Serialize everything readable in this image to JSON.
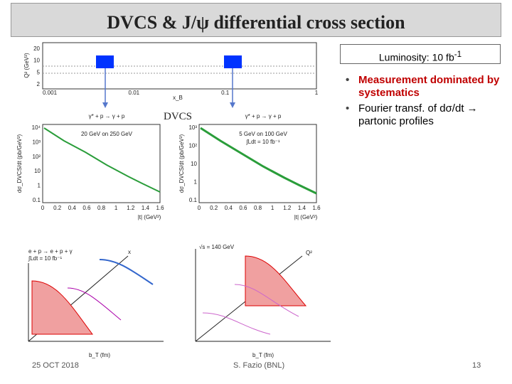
{
  "header": {
    "title": "DVCS & J/ψ differential cross section"
  },
  "luminosity": {
    "text": "Luminosity: 10 fb",
    "sup": "-1"
  },
  "bullets": [
    "Measurement dominated by systematics",
    "Fourier transf. of dσ/dt → partonic profiles"
  ],
  "dvcs_label": "DVCS",
  "kinematic_plot": {
    "y_label": "Q² (GeV²)",
    "y_ticks": [
      "20",
      "10",
      "5",
      "2"
    ],
    "x_label": "x_B",
    "x_ticks": [
      "0.001",
      "0.01",
      "0.1",
      "1"
    ]
  },
  "cross_section_plots": [
    {
      "process": "γ* + p → γ + p",
      "beams": "20 GeV on 250 GeV",
      "luminosity": "∫Ldt = 10 fb⁻¹",
      "y_label": "dσ_DVCS/dt (pb/GeV²)",
      "y_ticks": [
        "10⁴",
        "10³",
        "10²",
        "10",
        "1",
        "0.1"
      ],
      "x_label": "|t| (GeV²)",
      "x_ticks": [
        "0",
        "0.2",
        "0.4",
        "0.6",
        "0.8",
        "1",
        "1.2",
        "1.4",
        "1.6"
      ]
    },
    {
      "process": "γ* + p → γ + p",
      "beams": "5 GeV on 100 GeV",
      "luminosity": "∫Ldt = 10 fb⁻¹",
      "y_label": "dσ_DVCS/dt (pb/GeV²)",
      "y_ticks": [
        "10³",
        "10²",
        "10",
        "1",
        "0.1"
      ],
      "x_label": "|t| (GeV²)",
      "x_ticks": [
        "0",
        "0.2",
        "0.4",
        "0.6",
        "0.8",
        "1",
        "1.2",
        "1.4",
        "1.6"
      ]
    }
  ],
  "profile_plots": [
    {
      "process": "e + p → e + p + γ",
      "luminosity": "∫Ldt = 10 fb⁻¹",
      "axis_label": "x",
      "x_label": "b_T (fm)"
    },
    {
      "process": "√s = 140 GeV",
      "axis_label": "Q²",
      "x_label": "b_T (fm)"
    }
  ],
  "footer": {
    "date": "25 OCT 2018",
    "author": "S. Fazio (BNL)",
    "page": "13"
  }
}
